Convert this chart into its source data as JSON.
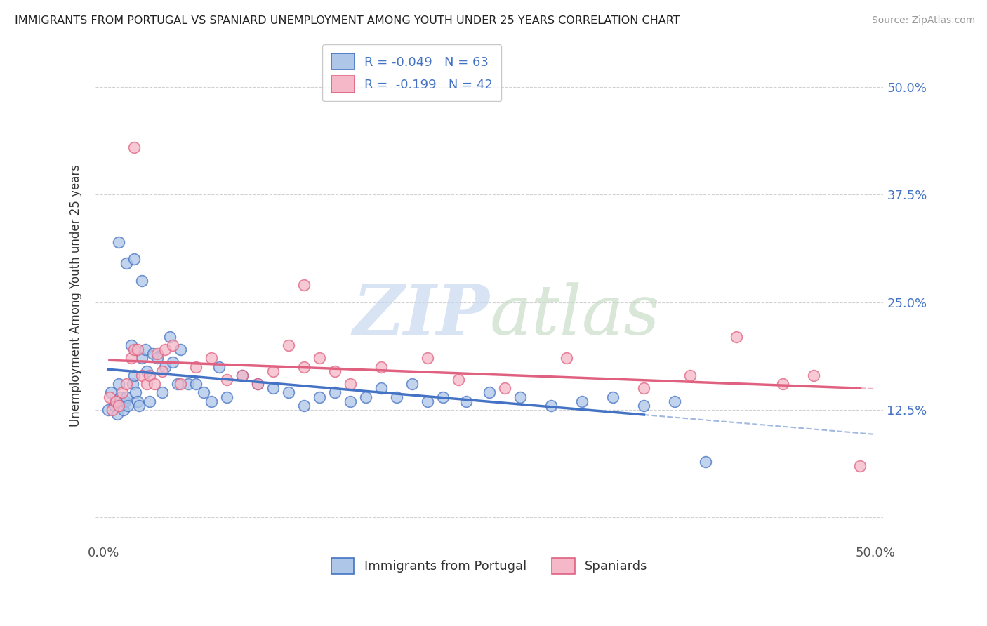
{
  "title": "IMMIGRANTS FROM PORTUGAL VS SPANIARD UNEMPLOYMENT AMONG YOUTH UNDER 25 YEARS CORRELATION CHART",
  "source": "Source: ZipAtlas.com",
  "ylabel": "Unemployment Among Youth under 25 years",
  "xlim": [
    -0.005,
    0.505
  ],
  "ylim": [
    -0.03,
    0.545
  ],
  "xticks": [
    0.0,
    0.1,
    0.2,
    0.3,
    0.4,
    0.5
  ],
  "xticklabels": [
    "0.0%",
    "",
    "",
    "",
    "",
    "50.0%"
  ],
  "yticks_right": [
    0.0,
    0.125,
    0.25,
    0.375,
    0.5
  ],
  "ytick_right_labels": [
    "",
    "12.5%",
    "25.0%",
    "37.5%",
    "50.0%"
  ],
  "series1_label": "Immigrants from Portugal",
  "series1_color": "#4472c4",
  "series1_face": "#aec6e8",
  "series1_R": -0.049,
  "series1_N": 63,
  "series2_label": "Spaniards",
  "series2_color": "#e06080",
  "series2_face": "#f4b8c8",
  "series2_R": -0.199,
  "series2_N": 42,
  "background_color": "#ffffff",
  "grid_color": "#cccccc",
  "points1_x": [
    0.003,
    0.005,
    0.007,
    0.008,
    0.009,
    0.01,
    0.011,
    0.012,
    0.013,
    0.014,
    0.015,
    0.016,
    0.018,
    0.019,
    0.02,
    0.021,
    0.022,
    0.023,
    0.025,
    0.027,
    0.028,
    0.03,
    0.032,
    0.035,
    0.038,
    0.04,
    0.043,
    0.045,
    0.048,
    0.05,
    0.055,
    0.06,
    0.065,
    0.07,
    0.075,
    0.08,
    0.09,
    0.1,
    0.11,
    0.12,
    0.13,
    0.14,
    0.15,
    0.16,
    0.17,
    0.18,
    0.19,
    0.2,
    0.21,
    0.22,
    0.235,
    0.25,
    0.27,
    0.29,
    0.31,
    0.33,
    0.35,
    0.37,
    0.39,
    0.01,
    0.015,
    0.02,
    0.025
  ],
  "points1_y": [
    0.125,
    0.145,
    0.13,
    0.135,
    0.12,
    0.155,
    0.14,
    0.13,
    0.125,
    0.135,
    0.14,
    0.13,
    0.2,
    0.155,
    0.165,
    0.145,
    0.135,
    0.13,
    0.185,
    0.195,
    0.17,
    0.135,
    0.19,
    0.185,
    0.145,
    0.175,
    0.21,
    0.18,
    0.155,
    0.195,
    0.155,
    0.155,
    0.145,
    0.135,
    0.175,
    0.14,
    0.165,
    0.155,
    0.15,
    0.145,
    0.13,
    0.14,
    0.145,
    0.135,
    0.14,
    0.15,
    0.14,
    0.155,
    0.135,
    0.14,
    0.135,
    0.145,
    0.14,
    0.13,
    0.135,
    0.14,
    0.13,
    0.135,
    0.065,
    0.32,
    0.295,
    0.3,
    0.275
  ],
  "points2_x": [
    0.004,
    0.006,
    0.008,
    0.01,
    0.012,
    0.015,
    0.018,
    0.02,
    0.022,
    0.025,
    0.028,
    0.03,
    0.033,
    0.035,
    0.038,
    0.04,
    0.045,
    0.05,
    0.06,
    0.07,
    0.08,
    0.09,
    0.1,
    0.11,
    0.12,
    0.13,
    0.14,
    0.15,
    0.16,
    0.18,
    0.21,
    0.23,
    0.26,
    0.3,
    0.35,
    0.38,
    0.41,
    0.44,
    0.46,
    0.49,
    0.02,
    0.13
  ],
  "points2_y": [
    0.14,
    0.125,
    0.135,
    0.13,
    0.145,
    0.155,
    0.185,
    0.195,
    0.195,
    0.165,
    0.155,
    0.165,
    0.155,
    0.19,
    0.17,
    0.195,
    0.2,
    0.155,
    0.175,
    0.185,
    0.16,
    0.165,
    0.155,
    0.17,
    0.2,
    0.175,
    0.185,
    0.17,
    0.155,
    0.175,
    0.185,
    0.16,
    0.15,
    0.185,
    0.15,
    0.165,
    0.21,
    0.155,
    0.165,
    0.06,
    0.43,
    0.27
  ]
}
